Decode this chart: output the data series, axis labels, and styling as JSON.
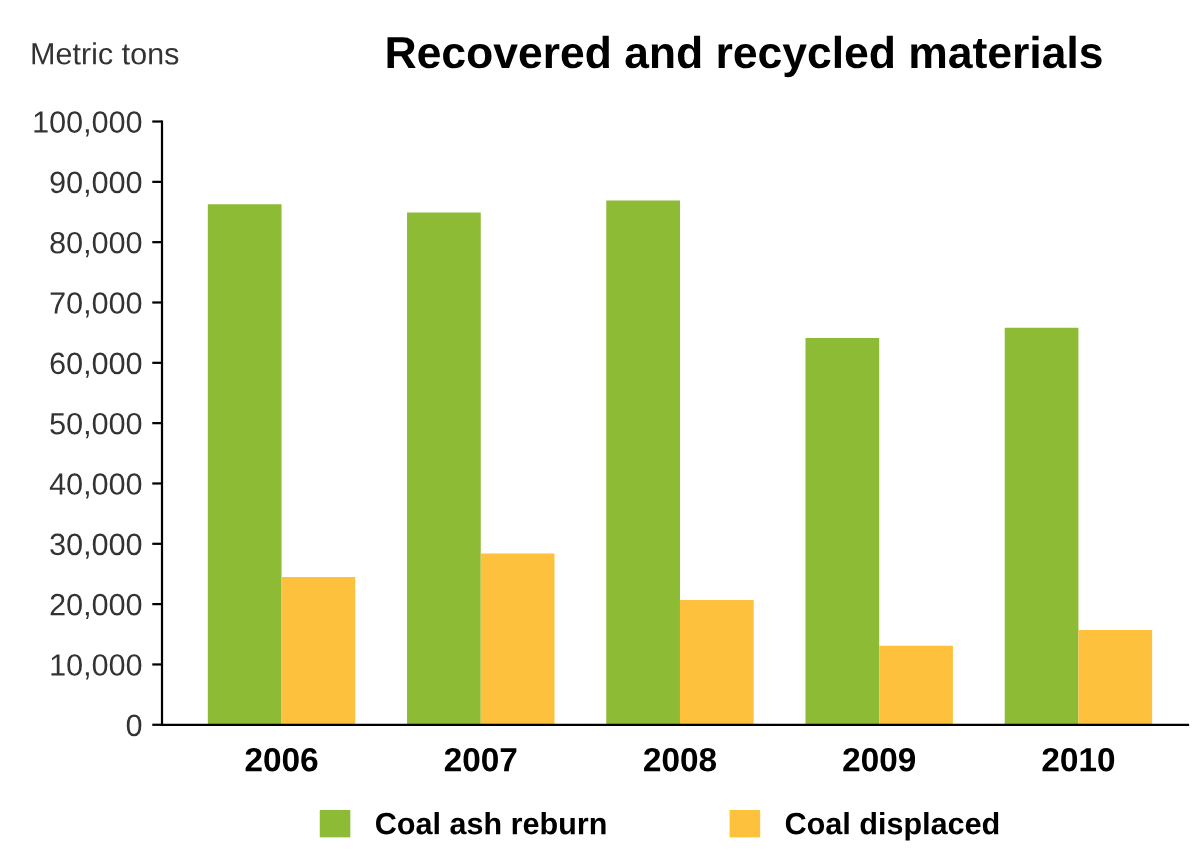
{
  "chart_data": {
    "type": "bar",
    "title": "Recovered and recycled materials",
    "ylabel": "Metric tons",
    "categories": [
      "2006",
      "2007",
      "2008",
      "2009",
      "2010"
    ],
    "series": [
      {
        "name": "Coal ash reburn",
        "color": "#8dbb35",
        "values": [
          86300,
          84900,
          86900,
          64100,
          65800
        ]
      },
      {
        "name": "Coal displaced",
        "color": "#fdc13e",
        "values": [
          24500,
          28400,
          20700,
          13100,
          15700
        ]
      }
    ],
    "ylim": [
      0,
      100000
    ],
    "yticks": [
      {
        "value": 0,
        "label": "0"
      },
      {
        "value": 10000,
        "label": "10,000"
      },
      {
        "value": 20000,
        "label": "20,000"
      },
      {
        "value": 30000,
        "label": "30,000"
      },
      {
        "value": 40000,
        "label": "40,000"
      },
      {
        "value": 50000,
        "label": "50,000"
      },
      {
        "value": 60000,
        "label": "60,000"
      },
      {
        "value": 70000,
        "label": "70,000"
      },
      {
        "value": 80000,
        "label": "80,000"
      },
      {
        "value": 90000,
        "label": "90,000"
      },
      {
        "value": 100000,
        "label": "100,000"
      }
    ],
    "grid": false,
    "legend": "bottom"
  }
}
